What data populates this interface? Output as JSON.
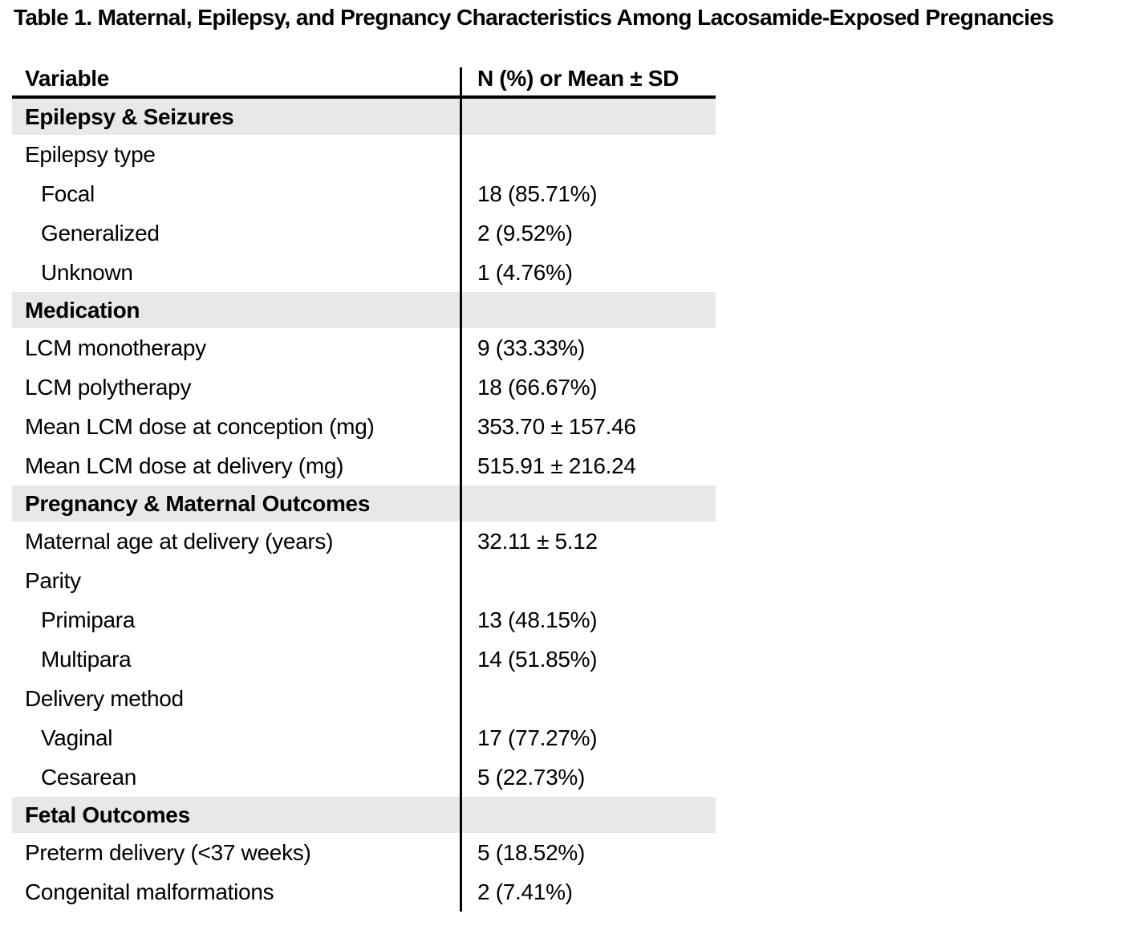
{
  "title": "Table 1. Maternal, Epilepsy, and Pregnancy Characteristics Among Lacosamide-Exposed Pregnancies",
  "colors": {
    "section_bg": "#e8e8e8",
    "text": "#000000",
    "rule": "#000000"
  },
  "table": {
    "columns": [
      "Variable",
      "N (%) or Mean ± SD"
    ],
    "rows": [
      {
        "type": "section",
        "label": "Epilepsy & Seizures",
        "value": "",
        "indent": 0
      },
      {
        "type": "row",
        "label": "Epilepsy type",
        "value": "",
        "indent": 0
      },
      {
        "type": "row",
        "label": "Focal",
        "value": "18 (85.71%)",
        "indent": 1
      },
      {
        "type": "row",
        "label": "Generalized",
        "value": "2 (9.52%)",
        "indent": 1
      },
      {
        "type": "row",
        "label": "Unknown",
        "value": "1 (4.76%)",
        "indent": 1
      },
      {
        "type": "section",
        "label": "Medication",
        "value": "",
        "indent": 0
      },
      {
        "type": "row",
        "label": "LCM monotherapy",
        "value": "9 (33.33%)",
        "indent": 0
      },
      {
        "type": "row",
        "label": "LCM polytherapy",
        "value": "18 (66.67%)",
        "indent": 0
      },
      {
        "type": "row",
        "label": "Mean LCM dose at conception (mg)",
        "value": "353.70 ± 157.46",
        "indent": 0
      },
      {
        "type": "row",
        "label": "Mean LCM dose at delivery (mg)",
        "value": "515.91 ± 216.24",
        "indent": 0
      },
      {
        "type": "section",
        "label": "Pregnancy & Maternal Outcomes",
        "value": "",
        "indent": 0
      },
      {
        "type": "row",
        "label": "Maternal age at delivery (years)",
        "value": "32.11 ± 5.12",
        "indent": 0
      },
      {
        "type": "row",
        "label": "Parity",
        "value": "",
        "indent": 0
      },
      {
        "type": "row",
        "label": "Primipara",
        "value": "13 (48.15%)",
        "indent": 1
      },
      {
        "type": "row",
        "label": "Multipara",
        "value": "14 (51.85%)",
        "indent": 1
      },
      {
        "type": "row",
        "label": "Delivery method",
        "value": "",
        "indent": 0
      },
      {
        "type": "row",
        "label": "Vaginal",
        "value": "17 (77.27%)",
        "indent": 1
      },
      {
        "type": "row",
        "label": "Cesarean",
        "value": "5 (22.73%)",
        "indent": 1
      },
      {
        "type": "section",
        "label": "Fetal Outcomes",
        "value": "",
        "indent": 0
      },
      {
        "type": "row",
        "label": "Preterm delivery (<37 weeks)",
        "value": "5 (18.52%)",
        "indent": 0
      },
      {
        "type": "row",
        "label": "Congenital malformations",
        "value": "2 (7.41%)",
        "indent": 0
      }
    ]
  }
}
